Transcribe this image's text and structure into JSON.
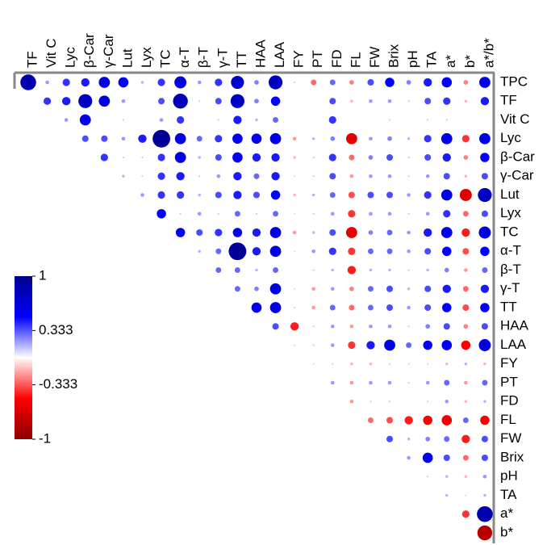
{
  "chart_data": {
    "type": "corrplot",
    "x_labels": [
      "TF",
      "Vit C",
      "Lyc",
      "β-Car",
      "γ-Car",
      "Lut",
      "Lyx",
      "TC",
      "α-T",
      "β-T",
      "γ-T",
      "TT",
      "HAA",
      "LAA",
      "FY",
      "PT",
      "FD",
      "FL",
      "FW",
      "Brix",
      "pH",
      "TA",
      "a*",
      "b*",
      "a*/b*"
    ],
    "y_labels": [
      "TPC",
      "TF",
      "Vit C",
      "Lyc",
      "β-Car",
      "γ-Car",
      "Lut",
      "Lyx",
      "TC",
      "α-T",
      "β-T",
      "γ-T",
      "TT",
      "HAA",
      "LAA",
      "FY",
      "PT",
      "FD",
      "FL",
      "FW",
      "Brix",
      "pH",
      "TA",
      "a*",
      "b*"
    ],
    "values": [
      [
        0.85,
        0.2,
        0.4,
        0.45,
        0.6,
        0.55,
        0.15,
        0.4,
        0.65,
        0.2,
        0.4,
        0.7,
        0.25,
        0.75,
        0.1,
        -0.3,
        0.3,
        -0.25,
        0.35,
        0.5,
        0.25,
        0.45,
        0.55,
        -0.25,
        0.6
      ],
      [
        0.4,
        0.45,
        0.75,
        0.6,
        0.2,
        0.05,
        0.35,
        0.8,
        0.1,
        0.35,
        0.75,
        0.25,
        0.5,
        0.05,
        0.05,
        0.35,
        -0.15,
        0.2,
        0.2,
        0.1,
        0.35,
        0.4,
        -0.15,
        0.45
      ],
      [
        0.2,
        0.6,
        0.05,
        0.1,
        0.05,
        0.2,
        0.4,
        0.05,
        0.1,
        0.45,
        0.15,
        0.3,
        0.05,
        0.05,
        0.4,
        0.05,
        0.05,
        0.1,
        0.05,
        0.1,
        0.1,
        0.05,
        0.05
      ],
      [
        0.35,
        0.35,
        0.2,
        0.45,
        0.95,
        0.6,
        0.3,
        0.4,
        0.55,
        0.55,
        0.6,
        -0.2,
        0.15,
        0.25,
        -0.6,
        0.2,
        0.25,
        0.15,
        0.4,
        0.6,
        -0.4,
        0.6
      ],
      [
        0.4,
        0.1,
        0.1,
        0.4,
        0.6,
        0.15,
        0.35,
        0.55,
        0.45,
        0.45,
        -0.15,
        0.1,
        0.4,
        -0.3,
        0.25,
        0.35,
        0.1,
        0.35,
        0.45,
        -0.25,
        0.5
      ],
      [
        0.15,
        0.1,
        0.4,
        0.45,
        0.1,
        0.2,
        0.45,
        0.3,
        0.45,
        -0.1,
        0.1,
        0.35,
        -0.2,
        0.2,
        0.2,
        0.1,
        0.2,
        0.35,
        -0.15,
        0.35
      ],
      [
        0.2,
        0.4,
        0.4,
        0.15,
        0.35,
        0.45,
        0.35,
        0.5,
        -0.15,
        0.15,
        0.3,
        -0.35,
        0.35,
        0.35,
        0.2,
        0.4,
        0.6,
        -0.65,
        0.75
      ],
      [
        0.5,
        0.1,
        0.2,
        0.1,
        0.3,
        0.1,
        0.3,
        -0.1,
        0.1,
        0.2,
        -0.4,
        0.2,
        0.2,
        0.1,
        0.2,
        0.4,
        -0.3,
        0.35
      ],
      [
        0.5,
        0.35,
        0.4,
        0.5,
        0.45,
        0.6,
        -0.2,
        0.15,
        0.35,
        -0.6,
        0.25,
        0.3,
        0.2,
        0.45,
        0.6,
        -0.45,
        0.65
      ],
      [
        0.15,
        0.3,
        0.95,
        0.45,
        0.6,
        -0.1,
        0.2,
        0.4,
        -0.4,
        0.3,
        0.3,
        0.2,
        0.35,
        0.5,
        -0.35,
        0.5
      ],
      [
        0.3,
        0.3,
        0.15,
        0.3,
        0.05,
        0.1,
        0.15,
        -0.45,
        0.15,
        0.15,
        0.1,
        0.15,
        0.25,
        -0.2,
        0.3
      ],
      [
        0.3,
        0.25,
        0.6,
        -0.1,
        -0.2,
        0.2,
        -0.25,
        0.3,
        0.35,
        0.15,
        0.35,
        0.45,
        -0.3,
        0.45
      ],
      [
        0.55,
        0.6,
        -0.1,
        -0.2,
        0.3,
        -0.3,
        0.3,
        0.35,
        0.2,
        0.35,
        0.5,
        -0.35,
        0.5
      ],
      [
        0.35,
        -0.45,
        0.1,
        0.2,
        -0.2,
        0.2,
        0.2,
        0.1,
        0.25,
        0.35,
        -0.25,
        0.35
      ],
      [
        -0.1,
        0.1,
        0.2,
        -0.4,
        0.45,
        0.6,
        0.3,
        0.5,
        0.55,
        -0.5,
        0.65
      ],
      [
        -0.1,
        0.1,
        -0.15,
        -0.15,
        -0.1,
        -0.1,
        -0.1,
        -0.15,
        0.15,
        -0.15
      ],
      [
        0.2,
        -0.2,
        0.2,
        0.2,
        0.1,
        0.2,
        0.3,
        -0.2,
        0.3
      ],
      [
        -0.2,
        0.1,
        0.1,
        0.05,
        0.1,
        0.2,
        -0.15,
        0.15
      ],
      [
        -0.3,
        -0.35,
        -0.45,
        -0.5,
        -0.55,
        0.3,
        -0.5
      ],
      [
        0.35,
        0.15,
        0.25,
        0.3,
        -0.45,
        0.35
      ],
      [
        0.2,
        0.55,
        0.35,
        -0.3,
        0.35
      ],
      [
        0.1,
        0.15,
        -0.15,
        0.2
      ],
      [
        0.15,
        -0.1,
        0.15
      ],
      [
        -0.4,
        0.85
      ],
      [
        -0.8
      ]
    ],
    "colorbar_lim": [
      -1,
      1
    ],
    "colorbar_ticks": [
      1,
      0.333,
      -0.333,
      -1
    ],
    "colormap": [
      "#8b0000",
      "#ff0000",
      "#ffffff",
      "#0000ff",
      "#00008b"
    ]
  }
}
